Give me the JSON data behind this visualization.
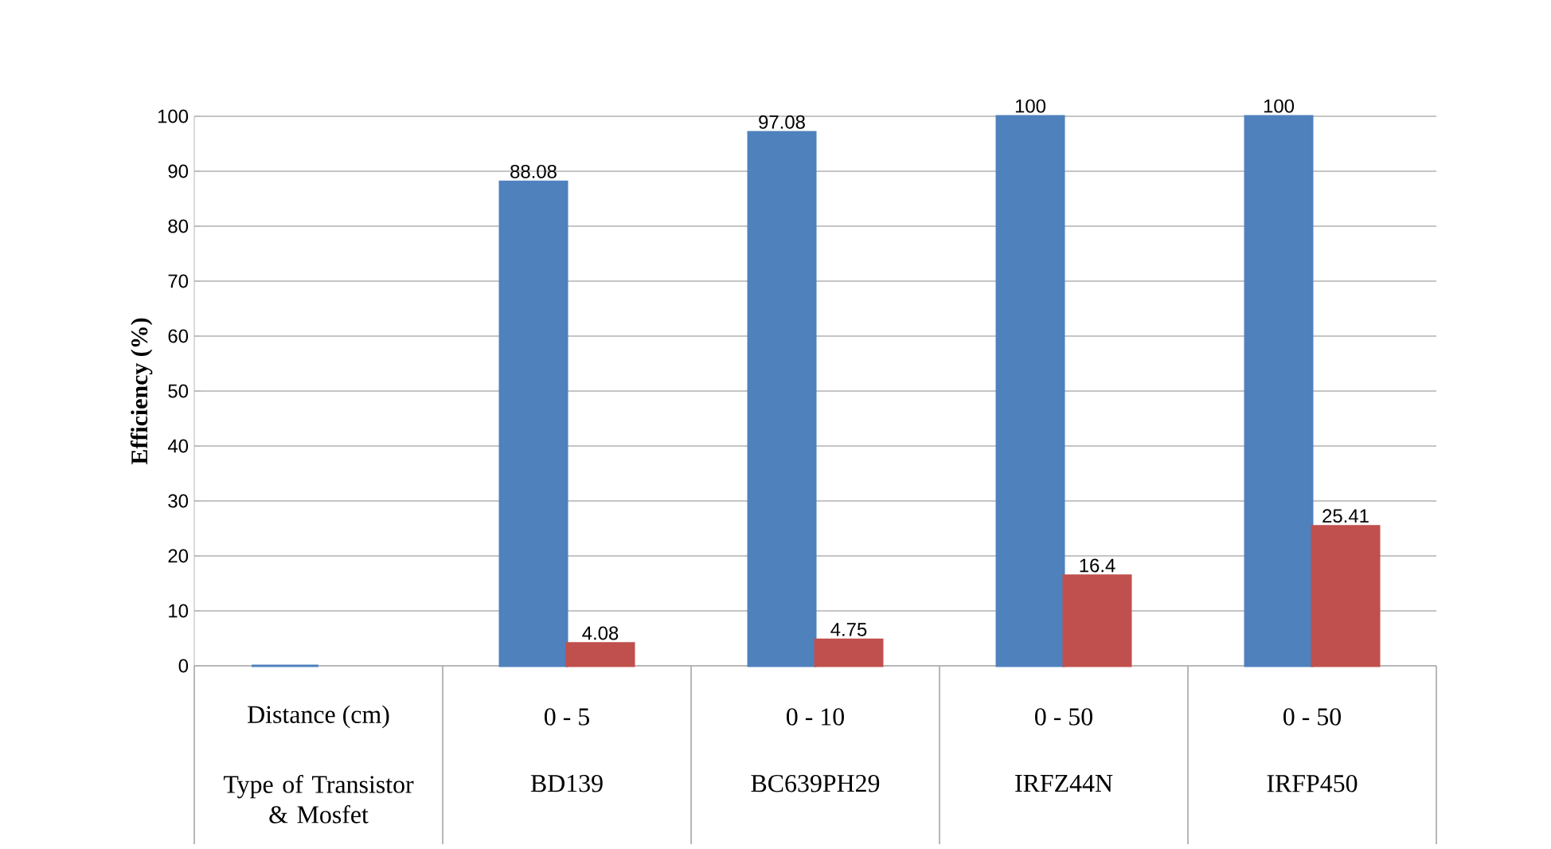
{
  "chart_data": {
    "type": "bar",
    "ylabel": "Efficiency (%)",
    "categories": [
      "Type of Transistor & Mosfet",
      "BD139",
      "BC639PH29",
      "IRFZ44N",
      "IRFP450"
    ],
    "annotations": [
      "Distance (cm)",
      "0 - 5",
      "0 - 10",
      "0 - 50",
      "0 - 50"
    ],
    "series": [
      {
        "color": "#4f81bd",
        "values": [
          0,
          88.08,
          97.08,
          100,
          100
        ],
        "value_labels": [
          null,
          "88.08",
          "97.08",
          "100",
          "100"
        ]
      },
      {
        "color": "#c0504d",
        "values": [
          null,
          4.08,
          4.75,
          16.4,
          25.41
        ],
        "value_labels": [
          null,
          "4.08",
          "4.75",
          "16.4",
          "25.41"
        ]
      }
    ],
    "ylim": [
      0,
      100
    ],
    "yticks": [
      0,
      10,
      20,
      30,
      40,
      50,
      60,
      70,
      80,
      90,
      100
    ],
    "grid": "y"
  }
}
